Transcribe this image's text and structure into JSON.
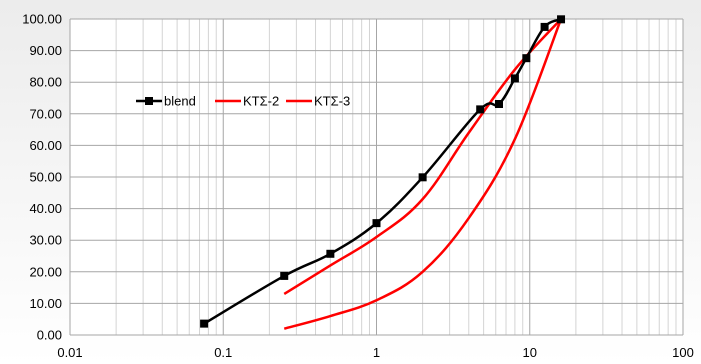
{
  "chart_data": {
    "type": "line",
    "title": "",
    "xlabel": "",
    "ylabel": "",
    "x_scale": "log",
    "xlim": [
      0.01,
      100
    ],
    "ylim": [
      0,
      100
    ],
    "grid": true,
    "legend_position": "upper-left inside plot",
    "x_tick_labels": [
      "0.01",
      "0.1",
      "1",
      "10",
      "100"
    ],
    "x_tick_values": [
      0.01,
      0.1,
      1,
      10,
      100
    ],
    "y_tick_labels": [
      "0.00",
      "10.00",
      "20.00",
      "30.00",
      "40.00",
      "50.00",
      "60.00",
      "70.00",
      "80.00",
      "90.00",
      "100.00"
    ],
    "y_tick_values": [
      0,
      10,
      20,
      30,
      40,
      50,
      60,
      70,
      80,
      90,
      100
    ],
    "series": [
      {
        "name": "blend",
        "color": "#000000",
        "marker": "square",
        "x": [
          0.075,
          0.25,
          0.5,
          1.0,
          2.0,
          4.75,
          6.3,
          8.0,
          9.5,
          12.5,
          16.0
        ],
        "y": [
          3.6,
          18.7,
          25.7,
          35.4,
          49.9,
          71.4,
          73.1,
          81.2,
          87.6,
          97.5,
          99.9
        ]
      },
      {
        "name": "ΚΤΣ-2",
        "color": "#ff0000",
        "marker": "none",
        "x": [
          0.25,
          0.5,
          1.0,
          2.0,
          4.0,
          8.0,
          16.0
        ],
        "y": [
          13.0,
          22.0,
          31.0,
          43.0,
          64.0,
          84.0,
          100.0
        ]
      },
      {
        "name": "ΚΤΣ-3",
        "color": "#ff0000",
        "marker": "none",
        "x": [
          0.25,
          0.5,
          1.0,
          2.0,
          4.0,
          8.0,
          16.0
        ],
        "y": [
          2.0,
          6.0,
          11.0,
          20.0,
          37.0,
          62.0,
          100.0
        ]
      }
    ]
  }
}
